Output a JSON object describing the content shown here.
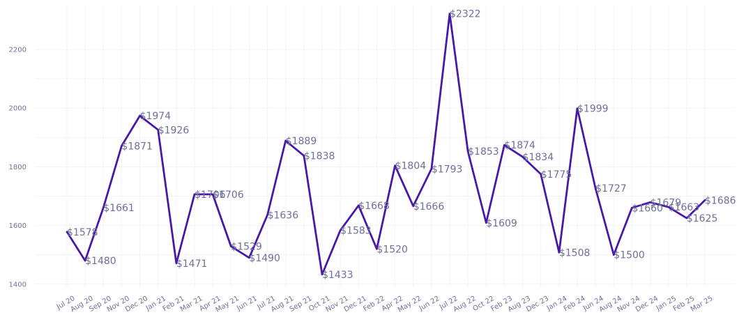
{
  "chart_data": {
    "type": "line",
    "title": "",
    "xlabel": "",
    "ylabel": "",
    "ylim": [
      1390,
      2340
    ],
    "yticks": [
      1400,
      1600,
      1800,
      2000,
      2200
    ],
    "grid": true,
    "line_color": "#4a18a8",
    "label_color": "#6f6f9a",
    "categories": [
      "Jul 20",
      "Aug 20",
      "Sep 20",
      "Nov 20",
      "Dec 20",
      "Jan 21",
      "Feb 21",
      "Mar 21",
      "Apr 21",
      "May 21",
      "Jun 21",
      "Jul 21",
      "Aug 21",
      "Sep 21",
      "Oct 21",
      "Nov 21",
      "Dec 21",
      "Feb 22",
      "Apr 22",
      "May 22",
      "Jun 22",
      "Jul 22",
      "Aug 22",
      "Oct 22",
      "Feb 23",
      "Aug 23",
      "Dec 23",
      "Jan 24",
      "Feb 24",
      "Jun 24",
      "Aug 24",
      "Nov 24",
      "Dec 24",
      "Jan 25",
      "Feb 25",
      "Mar 25"
    ],
    "series": [
      {
        "name": "Price",
        "values": [
          1578,
          1480,
          1661,
          1871,
          1974,
          1926,
          1471,
          1706,
          1706,
          1529,
          1490,
          1636,
          1889,
          1838,
          1433,
          1583,
          1668,
          1520,
          1804,
          1666,
          1793,
          2322,
          1853,
          1609,
          1874,
          1834,
          1775,
          1508,
          1999,
          1727,
          1500,
          1660,
          1679,
          1663,
          1625,
          1686
        ],
        "labels": [
          "$1578",
          "$1480",
          "$1661",
          "$1871",
          "$1974",
          "$1926",
          "$1471",
          "$1706",
          "$1706",
          "$1529",
          "$1490",
          "$1636",
          "$1889",
          "$1838",
          "$1433",
          "$1583",
          "$1668",
          "$1520",
          "$1804",
          "$1666",
          "$1793",
          "$2322",
          "$1853",
          "$1609",
          "$1874",
          "$1834",
          "$1775",
          "$1508",
          "$1999",
          "$1727",
          "$1500",
          "$1660",
          "$1679",
          "$1663",
          "$1625",
          "$1686"
        ]
      }
    ]
  }
}
